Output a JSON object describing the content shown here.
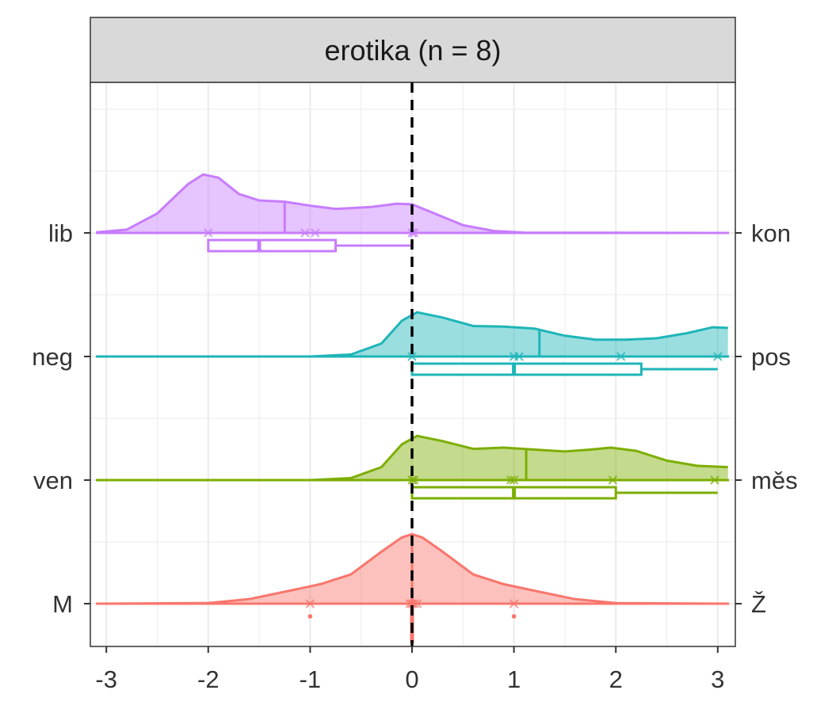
{
  "chart_data": {
    "type": "ridgeline-density-boxplot",
    "facet_title": "erotika (n = 8)",
    "xlim": [
      -3,
      3
    ],
    "x_ticks": [
      "-3",
      "-2",
      "-1",
      "0",
      "1",
      "2",
      "3"
    ],
    "reference_line_x": 0,
    "grid": true,
    "legend": "none",
    "rows": [
      {
        "left_label": "lib",
        "right_label": "kon",
        "color": "#C77CFF",
        "points": [
          -2,
          -1.05,
          -0.95,
          0,
          0.02
        ],
        "density": [
          [
            -3.1,
            0.01
          ],
          [
            -2.8,
            0.05
          ],
          [
            -2.5,
            0.3
          ],
          [
            -2.2,
            0.75
          ],
          [
            -2.05,
            0.9
          ],
          [
            -1.9,
            0.85
          ],
          [
            -1.7,
            0.6
          ],
          [
            -1.5,
            0.5
          ],
          [
            -1.25,
            0.48
          ],
          [
            -1,
            0.42
          ],
          [
            -0.75,
            0.37
          ],
          [
            -0.4,
            0.4
          ],
          [
            -0.15,
            0.45
          ],
          [
            0,
            0.44
          ],
          [
            0.25,
            0.28
          ],
          [
            0.5,
            0.12
          ],
          [
            0.8,
            0.03
          ],
          [
            1.1,
            0.005
          ],
          [
            3.1,
            0.0
          ]
        ],
        "median_line_x": -1.25,
        "box": {
          "min": -2,
          "q1": -2,
          "median": -1.5,
          "q3": -0.75,
          "max": 0
        }
      },
      {
        "left_label": "neg",
        "right_label": "pos",
        "color": "#1EB5B8",
        "points": [
          0,
          1,
          1.05,
          2.05,
          3
        ],
        "density": [
          [
            -3.1,
            0.0
          ],
          [
            -1,
            0.0
          ],
          [
            -0.6,
            0.03
          ],
          [
            -0.3,
            0.2
          ],
          [
            -0.1,
            0.55
          ],
          [
            0.05,
            0.68
          ],
          [
            0.3,
            0.6
          ],
          [
            0.6,
            0.47
          ],
          [
            0.9,
            0.46
          ],
          [
            1.2,
            0.43
          ],
          [
            1.5,
            0.32
          ],
          [
            1.8,
            0.26
          ],
          [
            2.1,
            0.26
          ],
          [
            2.4,
            0.28
          ],
          [
            2.7,
            0.36
          ],
          [
            2.95,
            0.45
          ],
          [
            3.1,
            0.44
          ]
        ],
        "median_line_x": 1.25,
        "box": {
          "min": 0,
          "q1": 0,
          "median": 1,
          "q3": 2.25,
          "max": 3
        }
      },
      {
        "left_label": "ven",
        "right_label": "měs",
        "color": "#7CAE00",
        "points": [
          0,
          0.02,
          0.97,
          1.0,
          1.97,
          2.97
        ],
        "density": [
          [
            -3.1,
            0.0
          ],
          [
            -1,
            0.0
          ],
          [
            -0.6,
            0.03
          ],
          [
            -0.3,
            0.2
          ],
          [
            -0.1,
            0.55
          ],
          [
            0.05,
            0.68
          ],
          [
            0.3,
            0.6
          ],
          [
            0.6,
            0.48
          ],
          [
            0.9,
            0.5
          ],
          [
            1.2,
            0.47
          ],
          [
            1.5,
            0.44
          ],
          [
            1.75,
            0.47
          ],
          [
            1.95,
            0.5
          ],
          [
            2.2,
            0.45
          ],
          [
            2.5,
            0.3
          ],
          [
            2.8,
            0.22
          ],
          [
            3.1,
            0.2
          ]
        ],
        "median_line_x": 1.12,
        "box": {
          "min": 0,
          "q1": 0,
          "median": 1,
          "q3": 2,
          "max": 3
        }
      },
      {
        "left_label": "M",
        "right_label": "Ž",
        "color": "#F8766D",
        "points": [
          -1,
          -0.02,
          0,
          0.02,
          0.05,
          1
        ],
        "outliers": [
          -1,
          1
        ],
        "density": [
          [
            -3.1,
            0.0
          ],
          [
            -2,
            0.01
          ],
          [
            -1.6,
            0.07
          ],
          [
            -1.2,
            0.2
          ],
          [
            -0.9,
            0.3
          ],
          [
            -0.6,
            0.45
          ],
          [
            -0.3,
            0.8
          ],
          [
            -0.1,
            1.02
          ],
          [
            0,
            1.07
          ],
          [
            0.1,
            1.02
          ],
          [
            0.3,
            0.8
          ],
          [
            0.6,
            0.45
          ],
          [
            0.9,
            0.3
          ],
          [
            1.2,
            0.2
          ],
          [
            1.6,
            0.07
          ],
          [
            2,
            0.01
          ],
          [
            3.1,
            0.0
          ]
        ],
        "median_line_x": 0,
        "box": {
          "min": 0,
          "q1": 0,
          "median": 0,
          "q3": 0,
          "max": 0
        }
      }
    ]
  }
}
